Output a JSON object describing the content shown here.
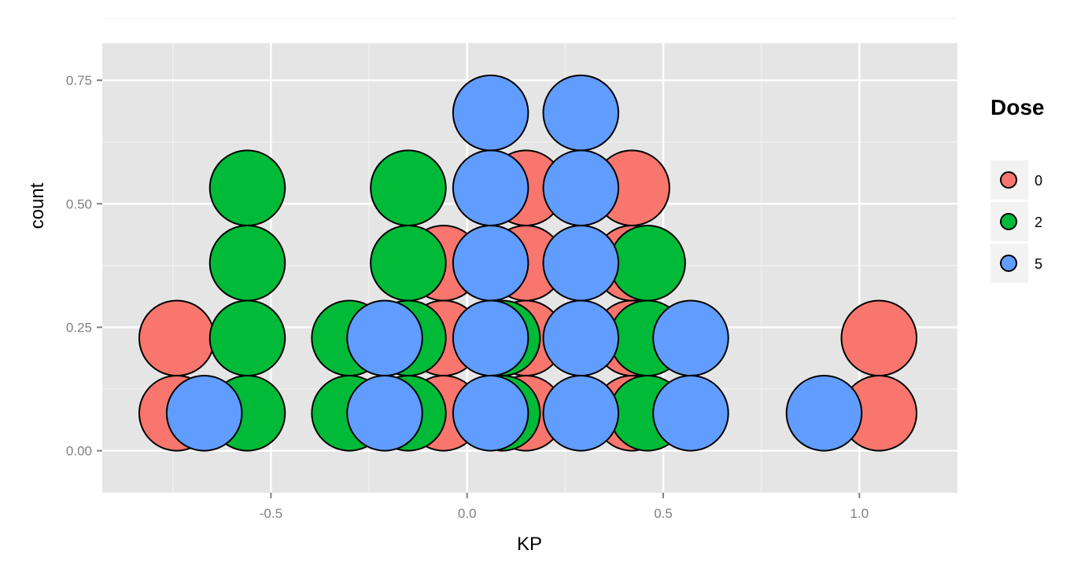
{
  "chart_data": {
    "type": "dotplot",
    "xlabel": "KP",
    "ylabel": "count",
    "xlim": [
      -0.93,
      1.25
    ],
    "ylim": [
      -0.085,
      0.825
    ],
    "x_ticks": [
      -0.5,
      0.0,
      0.5,
      1.0
    ],
    "x_tick_labels": [
      "-0.5",
      "0.0",
      "0.5",
      "1.0"
    ],
    "y_ticks": [
      0.0,
      0.25,
      0.5,
      0.75
    ],
    "y_tick_labels": [
      "0.00",
      "0.25",
      "0.50",
      "0.75"
    ],
    "grid": true,
    "legend": {
      "title": "Dose",
      "position": "right"
    },
    "dot_count_step": 0.152,
    "colors": {
      "0": "#F8766D",
      "2": "#00BA38",
      "5": "#619CFF"
    },
    "draw_order": [
      "0",
      "2",
      "5"
    ],
    "series": [
      {
        "name": "0",
        "stacks": [
          {
            "x": -0.74,
            "n": 2
          },
          {
            "x": -0.06,
            "n": 3
          },
          {
            "x": 0.15,
            "n": 4
          },
          {
            "x": 0.42,
            "n": 4
          },
          {
            "x": 1.05,
            "n": 2
          }
        ]
      },
      {
        "name": "2",
        "stacks": [
          {
            "x": -0.56,
            "n": 4
          },
          {
            "x": -0.3,
            "n": 2
          },
          {
            "x": -0.15,
            "n": 4
          },
          {
            "x": 0.09,
            "n": 2
          },
          {
            "x": 0.46,
            "n": 3
          }
        ]
      },
      {
        "name": "5",
        "stacks": [
          {
            "x": -0.67,
            "n": 1
          },
          {
            "x": -0.21,
            "n": 2
          },
          {
            "x": 0.06,
            "n": 5
          },
          {
            "x": 0.29,
            "n": 5
          },
          {
            "x": 0.57,
            "n": 2
          },
          {
            "x": 0.91,
            "n": 1
          }
        ]
      }
    ]
  }
}
